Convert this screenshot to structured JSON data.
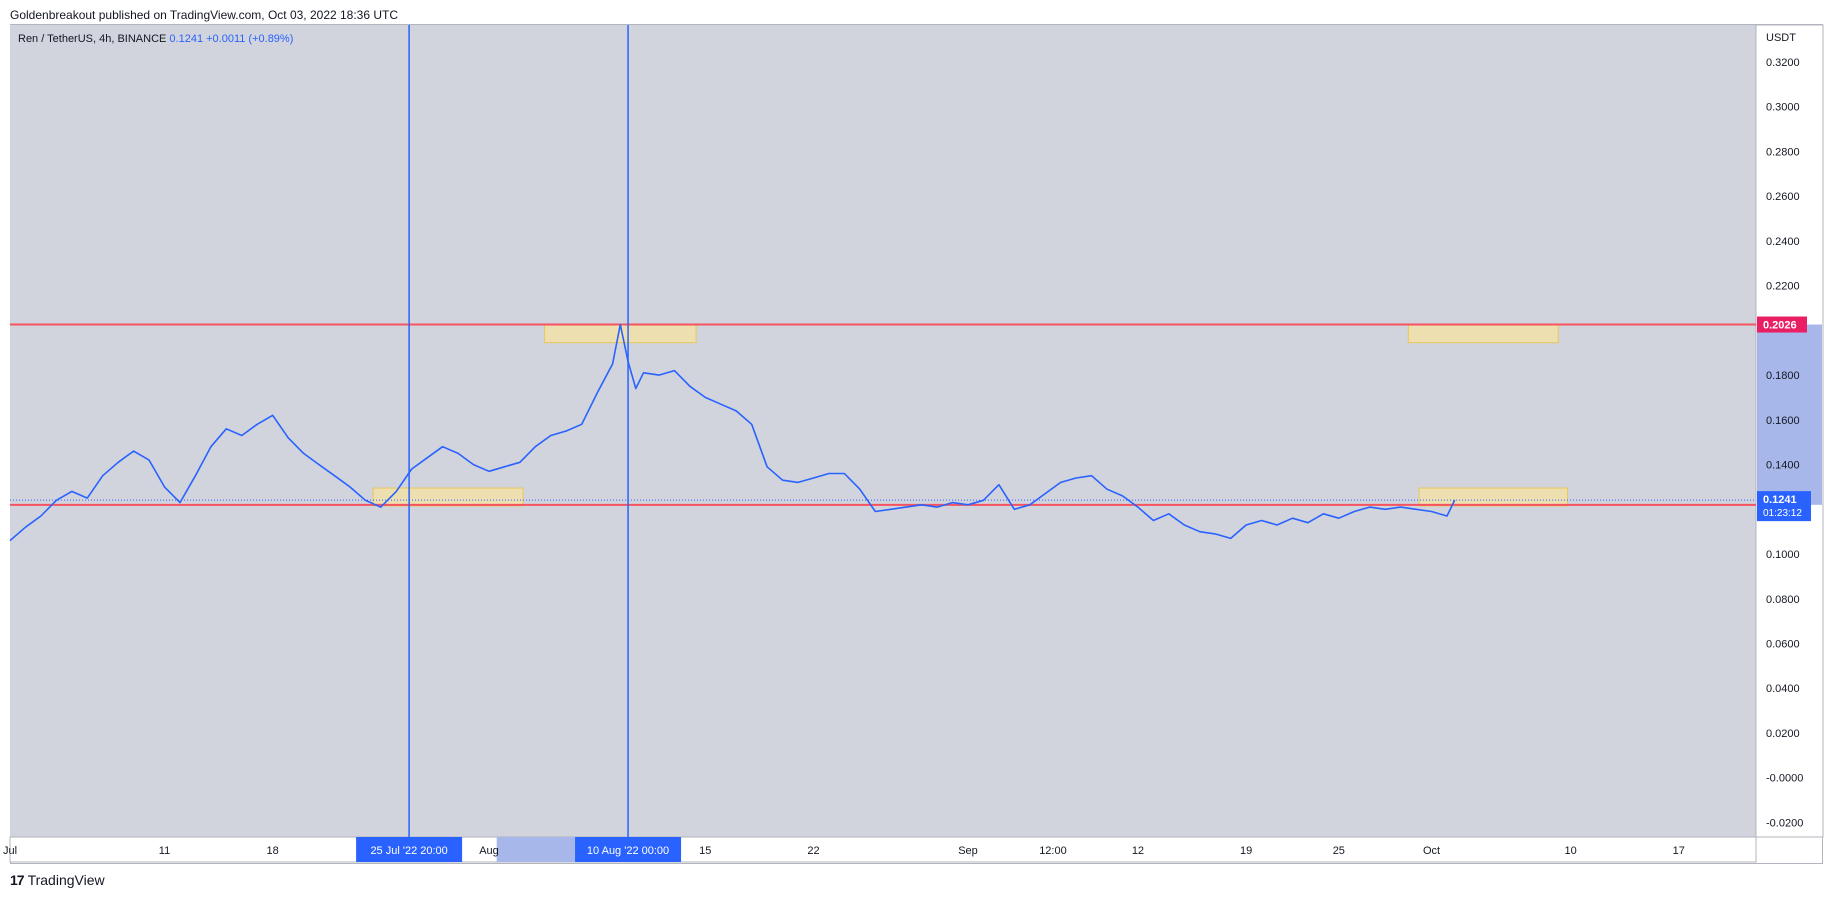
{
  "header": {
    "published_text": "Goldenbreakout published on TradingView.com, Oct 03, 2022 18:36 UTC"
  },
  "footer": {
    "logo_glyph": "17",
    "brand": "TradingView"
  },
  "colors": {
    "background": "#d1d4dc",
    "price_line": "#2962ff",
    "red_line": "#f7525f",
    "red_line_dark": "#e91e63",
    "zone_fill": "#f5e3a1",
    "vertical_line": "#2962ff",
    "axis_text": "#131722"
  },
  "chart_data": {
    "type": "line",
    "symbol": "Ren / TetherUS, 4h, BINANCE",
    "last_price": "0.1241",
    "change": "+0.0011 (+0.89%)",
    "currency": "USDT",
    "countdown": "01:23:12",
    "y_ticks": [
      "0.3200",
      "0.3000",
      "0.2800",
      "0.2600",
      "0.2400",
      "0.2200",
      "0.1800",
      "0.1600",
      "0.1400",
      "0.1000",
      "0.0800",
      "0.0600",
      "0.0400",
      "0.0200",
      "-0.0000",
      "-0.0200"
    ],
    "ylim": [
      -0.0265,
      0.3365
    ],
    "x_ticks": [
      {
        "label": "Jul",
        "day": 1
      },
      {
        "label": "11",
        "day": 11
      },
      {
        "label": "18",
        "day": 18
      },
      {
        "label": "Aug",
        "day": 32
      },
      {
        "label": "15",
        "day": 46
      },
      {
        "label": "22",
        "day": 53
      },
      {
        "label": "Sep",
        "day": 63
      },
      {
        "label": "12:00",
        "day": 68.5
      },
      {
        "label": "12",
        "day": 74
      },
      {
        "label": "19",
        "day": 81
      },
      {
        "label": "25",
        "day": 87
      },
      {
        "label": "Oct",
        "day": 93
      },
      {
        "label": "10",
        "day": 102
      },
      {
        "label": "17",
        "day": 109
      }
    ],
    "x_range_days": [
      1,
      114
    ],
    "horizontal_levels": [
      {
        "value": 0.2026,
        "label": "0.2026",
        "color": "#f7525f"
      },
      {
        "value": 0.122,
        "label": "0.1220",
        "color": "#f7525f"
      }
    ],
    "vertical_markers": [
      {
        "day": 26.83,
        "label": "25 Jul '22   20:00"
      },
      {
        "day": 41.0,
        "label": "10 Aug '22   00:00"
      }
    ],
    "highlight_x_range": [
      32.5,
      40.5
    ],
    "zones": [
      {
        "day_start": 35.6,
        "day_end": 45.4,
        "y_top": 0.2026,
        "y_bottom": 0.1945
      },
      {
        "day_start": 24.5,
        "day_end": 34.2,
        "y_top": 0.1295,
        "y_bottom": 0.1215
      },
      {
        "day_start": 91.5,
        "day_end": 101.2,
        "y_top": 0.2026,
        "y_bottom": 0.1945
      },
      {
        "day_start": 92.2,
        "day_end": 101.8,
        "y_top": 0.1295,
        "y_bottom": 0.1215
      }
    ],
    "series": [
      {
        "x": [
          1,
          2,
          3,
          4,
          5,
          6,
          7,
          8,
          9,
          10,
          11,
          12,
          13,
          14,
          15,
          16,
          17,
          18,
          19,
          20,
          21,
          22,
          23,
          24,
          25,
          26,
          27,
          28,
          29,
          30,
          31,
          32,
          33,
          34,
          35,
          36,
          37,
          38,
          39,
          40,
          40.5,
          41,
          41.5,
          42,
          43,
          44,
          45,
          46,
          47,
          48,
          49,
          50,
          51,
          52,
          53,
          54,
          55,
          56,
          57,
          58,
          59,
          60,
          61,
          62,
          63,
          64,
          65,
          66,
          67,
          68,
          69,
          70,
          71,
          72,
          73,
          74,
          75,
          76,
          77,
          78,
          79,
          80,
          81,
          82,
          83,
          84,
          85,
          86,
          87,
          88,
          89,
          90,
          91,
          92,
          93,
          94,
          94.5
        ],
        "y": [
          0.106,
          0.112,
          0.117,
          0.124,
          0.128,
          0.125,
          0.135,
          0.141,
          0.146,
          0.142,
          0.13,
          0.123,
          0.135,
          0.148,
          0.156,
          0.153,
          0.158,
          0.162,
          0.152,
          0.145,
          0.14,
          0.135,
          0.13,
          0.124,
          0.121,
          0.128,
          0.138,
          0.143,
          0.148,
          0.145,
          0.14,
          0.137,
          0.139,
          0.141,
          0.148,
          0.153,
          0.155,
          0.158,
          0.172,
          0.185,
          0.2026,
          0.186,
          0.174,
          0.181,
          0.18,
          0.182,
          0.175,
          0.17,
          0.167,
          0.164,
          0.158,
          0.139,
          0.133,
          0.132,
          0.134,
          0.136,
          0.136,
          0.129,
          0.119,
          0.12,
          0.121,
          0.122,
          0.121,
          0.123,
          0.122,
          0.124,
          0.131,
          0.12,
          0.122,
          0.127,
          0.132,
          0.134,
          0.135,
          0.129,
          0.126,
          0.121,
          0.115,
          0.118,
          0.113,
          0.11,
          0.109,
          0.107,
          0.113,
          0.115,
          0.113,
          0.116,
          0.114,
          0.118,
          0.116,
          0.119,
          0.121,
          0.12,
          0.121,
          0.12,
          0.119,
          0.117,
          0.1241
        ]
      }
    ]
  }
}
